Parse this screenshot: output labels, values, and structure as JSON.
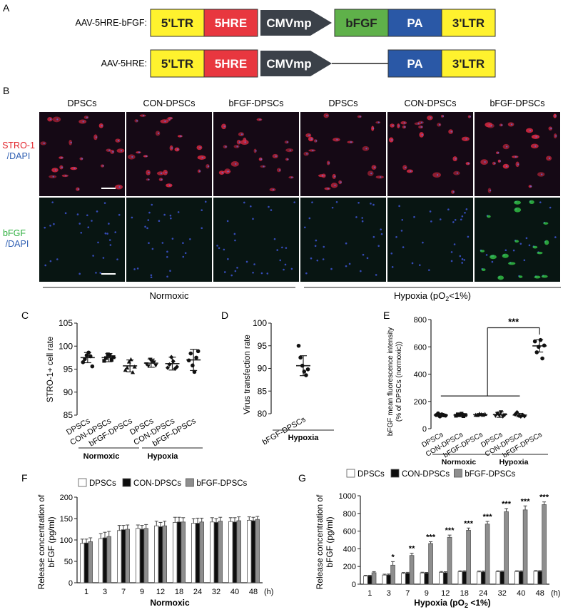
{
  "panel_labels": {
    "A": "A",
    "B": "B",
    "C": "C",
    "D": "D",
    "E": "E",
    "F": "F",
    "G": "G"
  },
  "panel_a": {
    "constructs": [
      {
        "name": "AAV-5HRE-bFGF:",
        "segments": [
          "5'LTR",
          "5HRE",
          "CMVmp",
          "bFGF",
          "PA",
          "3'LTR"
        ]
      },
      {
        "name": "AAV-5HRE:",
        "segments": [
          "5'LTR",
          "5HRE",
          "CMVmp",
          "PA",
          "3'LTR"
        ]
      }
    ],
    "colors": {
      "ltr": "#fff22e",
      "hre": "#e8373f",
      "cmv": "#3b4149",
      "bfgf": "#5fb14a",
      "pa": "#2a58a6"
    }
  },
  "panel_b": {
    "columns": [
      "DPSCs",
      "CON-DPSCs",
      "bFGF-DPSCs",
      "DPSCs",
      "CON-DPSCs",
      "bFGF-DPSCs"
    ],
    "row1_label": [
      "STRO-1",
      "/DAPI"
    ],
    "row2_label": [
      "bFGF",
      "/DAPI"
    ],
    "groups": {
      "normoxic": "Normoxic",
      "hypoxia": "Hypoxia (pO",
      "hypoxia_sub": "2",
      "hypoxia_tail": "<1%)"
    }
  },
  "chart_data": [
    {
      "id": "C",
      "type": "scatter",
      "ylabel": "STRO-1+ cell rate",
      "ylim": [
        85,
        105
      ],
      "yticks": [
        85,
        90,
        95,
        100,
        105
      ],
      "categories": [
        "DPSCs",
        "CON-DPSCs",
        "bFGF-DPSCs",
        "DPSCs",
        "CON-DPSCs",
        "bFGF-DPSCs"
      ],
      "means": [
        97.5,
        97.5,
        95.7,
        96.3,
        96.2,
        97.0
      ],
      "sd": [
        1.1,
        0.9,
        1.3,
        0.9,
        1.4,
        2.3
      ],
      "points": [
        [
          96.5,
          97.2,
          98.0,
          98.6,
          97.8,
          95.6
        ],
        [
          96.8,
          97.4,
          98.2,
          98.0,
          97.0,
          97.6
        ],
        [
          94.8,
          95.3,
          96.6,
          97.1,
          94.3,
          95.5
        ],
        [
          96.1,
          95.7,
          97.1,
          96.7,
          96.5,
          95.8
        ],
        [
          95.3,
          96.0,
          97.6,
          96.7,
          95.1,
          95.5
        ],
        [
          96.9,
          98.4,
          95.8,
          94.4,
          97.5,
          98.9
        ]
      ],
      "groups": [
        "Normoxic",
        "Hypoxia"
      ]
    },
    {
      "id": "D",
      "type": "scatter",
      "ylabel": "Virus transfection rate",
      "ylim": [
        80,
        100
      ],
      "yticks": [
        80,
        85,
        90,
        95,
        100
      ],
      "categories": [
        "bFGF-DPSCs"
      ],
      "means": [
        90.6
      ],
      "sd": [
        2.2
      ],
      "points": [
        [
          95.0,
          92.4,
          90.6,
          89.3,
          88.5,
          89.8
        ]
      ],
      "groups": [
        "Hypoxia"
      ]
    },
    {
      "id": "E",
      "type": "scatter",
      "ylabel": [
        "bFGF mean fluorescence intensity",
        "(% of DPSCs (normoxic))"
      ],
      "ylim": [
        0,
        800
      ],
      "yticks": [
        0,
        200,
        400,
        600,
        800
      ],
      "categories": [
        "DPSCs",
        "CON-DPSCs",
        "bFGF-DPSCs",
        "DPSCs",
        "CON-DPSCs",
        "bFGF-DPSCs"
      ],
      "means": [
        100,
        100,
        103,
        103,
        100,
        607
      ],
      "sd": [
        12,
        12,
        8,
        20,
        12,
        45
      ],
      "points": [
        [
          100,
          112,
          90,
          105,
          98,
          96
        ],
        [
          95,
          105,
          100,
          110,
          92,
          100
        ],
        [
          100,
          98,
          108,
          104,
          100,
          106
        ],
        [
          95,
          110,
          100,
          122,
          90,
          100
        ],
        [
          105,
          120,
          95,
          90,
          100,
          92
        ],
        [
          640,
          560,
          600,
          650,
          515,
          610
        ]
      ],
      "significance": "***",
      "groups": [
        "Normoxic",
        "Hypoxia"
      ]
    },
    {
      "id": "F",
      "type": "bar",
      "ylabel": [
        "Release concentration of",
        "bFGF (pg/ml)"
      ],
      "xlabel": "Normoxic",
      "xunit": "(h)",
      "ylim": [
        0,
        200
      ],
      "yticks": [
        0,
        50,
        100,
        150,
        200
      ],
      "categories": [
        "1",
        "3",
        "7",
        "9",
        "12",
        "18",
        "24",
        "32",
        "40",
        "48"
      ],
      "series": [
        {
          "name": "DPSCs",
          "values": [
            92,
            103,
            122,
            127,
            133,
            141,
            139,
            142,
            143,
            146
          ],
          "err": [
            10,
            12,
            12,
            8,
            11,
            12,
            11,
            10,
            9,
            8
          ]
        },
        {
          "name": "CON-DPSCs",
          "values": [
            93,
            105,
            124,
            125,
            131,
            142,
            139,
            141,
            142,
            145
          ],
          "err": [
            9,
            13,
            10,
            9,
            10,
            11,
            12,
            9,
            10,
            8
          ]
        },
        {
          "name": "bFGF-DPSCs",
          "values": [
            96,
            108,
            125,
            127,
            133,
            142,
            142,
            144,
            145,
            148
          ],
          "err": [
            9,
            12,
            10,
            9,
            11,
            10,
            9,
            9,
            9,
            7
          ]
        }
      ],
      "colors": [
        "#ffffff",
        "#0d0d0d",
        "#8e8e8e"
      ]
    },
    {
      "id": "G",
      "type": "bar",
      "ylabel": [
        "Release concentration of",
        "bFGF (pg/ml)"
      ],
      "xlabel": "Hypoxia (pO",
      "xlabel_sub": "2",
      "xlabel_tail": " <1%)",
      "xunit": "(h)",
      "ylim": [
        0,
        1000
      ],
      "yticks": [
        0,
        200,
        400,
        600,
        800,
        1000
      ],
      "categories": [
        "1",
        "3",
        "7",
        "9",
        "12",
        "18",
        "24",
        "32",
        "40",
        "48"
      ],
      "series": [
        {
          "name": "DPSCs",
          "values": [
            92,
            103,
            122,
            127,
            133,
            141,
            139,
            142,
            143,
            146
          ],
          "err": [
            8,
            10,
            10,
            8,
            10,
            10,
            10,
            9,
            9,
            8
          ]
        },
        {
          "name": "CON-DPSCs",
          "values": [
            93,
            105,
            124,
            125,
            131,
            142,
            139,
            141,
            142,
            145
          ],
          "err": [
            8,
            10,
            10,
            8,
            10,
            10,
            10,
            9,
            9,
            8
          ]
        },
        {
          "name": "bFGF-DPSCs",
          "values": [
            130,
            215,
            325,
            460,
            530,
            610,
            680,
            820,
            840,
            900
          ],
          "err": [
            12,
            40,
            25,
            20,
            25,
            25,
            30,
            35,
            45,
            30
          ]
        }
      ],
      "significance": [
        "",
        "*",
        "**",
        "***",
        "***",
        "***",
        "***",
        "***",
        "***",
        "***"
      ],
      "colors": [
        "#ffffff",
        "#0d0d0d",
        "#8e8e8e"
      ]
    }
  ]
}
